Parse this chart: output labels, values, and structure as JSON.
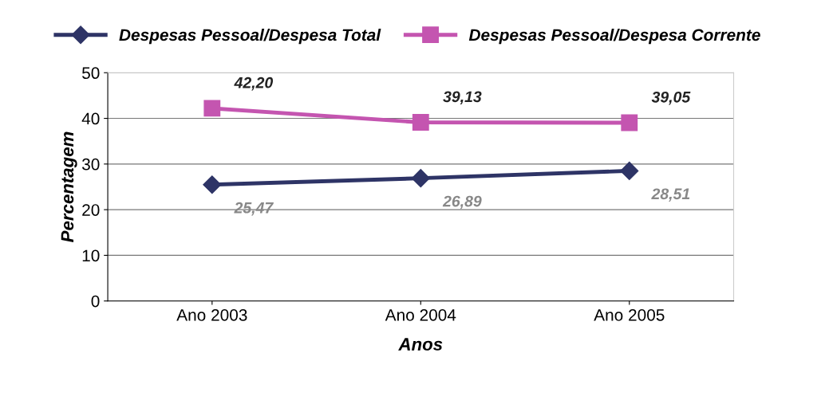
{
  "chart_data": {
    "type": "line",
    "xlabel": "Anos",
    "ylabel": "Percentagem",
    "categories": [
      "Ano 2003",
      "Ano 2004",
      "Ano 2005"
    ],
    "series": [
      {
        "name": "Despesas Pessoal/Despesa Total",
        "color": "#2e3466",
        "marker": "diamond",
        "values": [
          25.47,
          26.89,
          28.51
        ],
        "value_labels": [
          "25,47",
          "26,89",
          "28,51"
        ]
      },
      {
        "name": "Despesas Pessoal/Despesa Corrente",
        "color": "#c455b0",
        "marker": "square",
        "values": [
          42.2,
          39.13,
          39.05
        ],
        "value_labels": [
          "42,20",
          "39,13",
          "39,05"
        ]
      }
    ],
    "ylim": [
      0,
      50
    ],
    "yticks": [
      0,
      10,
      20,
      30,
      40,
      50
    ],
    "grid": "y",
    "legend": "top"
  }
}
